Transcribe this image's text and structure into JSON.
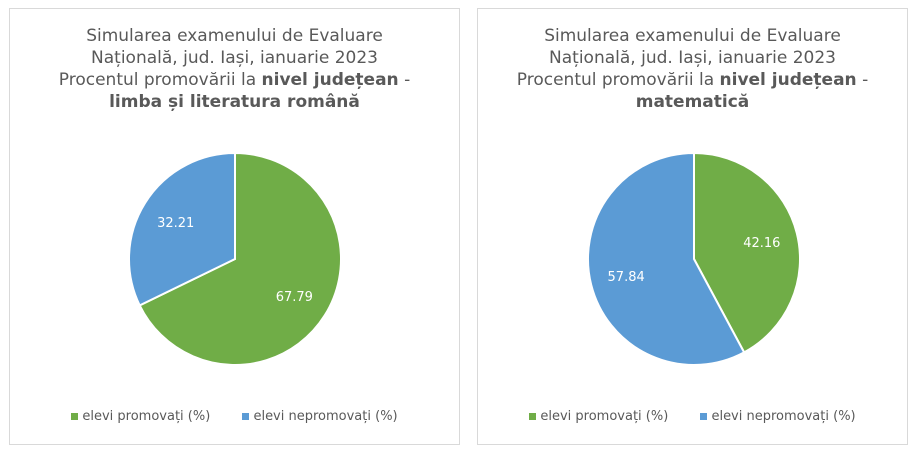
{
  "chart_data": [
    {
      "type": "pie",
      "title_lines": [
        "Simularea examenului de Evaluare",
        "Națională, jud. Iași, ianuarie 2023"
      ],
      "title_prefix": "Procentul promovării la ",
      "title_bold": "nivel județean",
      "title_sep": " -",
      "title_subject": "limba și literatura română",
      "categories": [
        "elevi promovați (%)",
        "elevi nepromovați (%)"
      ],
      "values": [
        67.79,
        32.21
      ],
      "labels": [
        "67.79",
        "32.21"
      ],
      "colors": [
        "#70ad47",
        "#5b9bd5"
      ],
      "legend": "bottom"
    },
    {
      "type": "pie",
      "title_lines": [
        "Simularea examenului de Evaluare",
        "Națională, jud. Iași, ianuarie 2023"
      ],
      "title_prefix": "Procentul promovării la ",
      "title_bold": "nivel județean",
      "title_sep": " -",
      "title_subject": "matematică",
      "categories": [
        "elevi promovați (%)",
        "elevi nepromovați (%)"
      ],
      "values": [
        42.16,
        57.84
      ],
      "labels": [
        "42.16",
        "57.84"
      ],
      "colors": [
        "#70ad47",
        "#5b9bd5"
      ],
      "legend": "bottom"
    }
  ]
}
